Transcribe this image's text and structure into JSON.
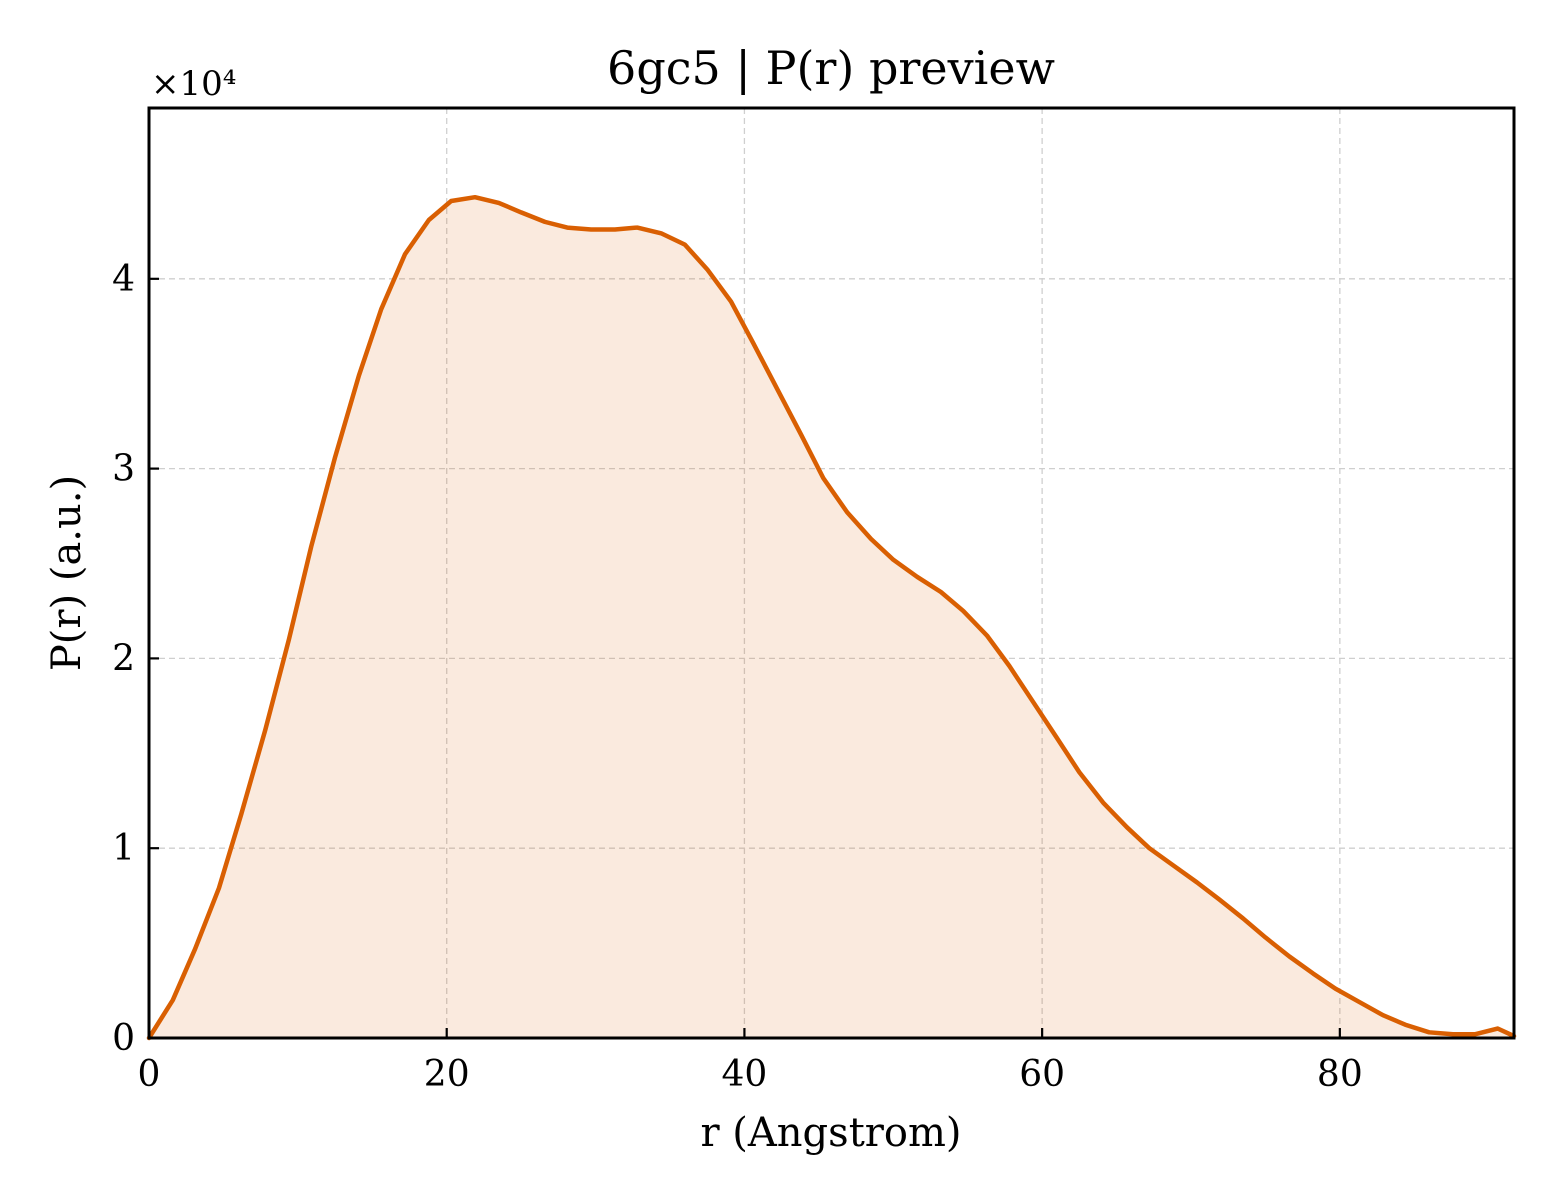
{
  "chart_data": {
    "type": "area",
    "title": "6gc5 | P(r) preview",
    "xlabel": "r (Angstrom)",
    "ylabel": "P(r) (a.u.)",
    "y_multiplier": "×10⁴",
    "xlim": [
      0,
      91.7
    ],
    "ylim": [
      0,
      4.9
    ],
    "xticks": [
      0,
      20,
      40,
      60,
      80
    ],
    "xtick_labels": [
      "0",
      "20",
      "40",
      "60",
      "80"
    ],
    "yticks": [
      0,
      1,
      2,
      3,
      4
    ],
    "ytick_labels": [
      "0",
      "1",
      "2",
      "3",
      "4"
    ],
    "grid": true,
    "legend": "none",
    "series": [
      {
        "color": "#d95f02",
        "fill_color": "#d95f02",
        "fill_opacity": 0.13,
        "x": [
          0,
          1.6,
          3.1,
          4.7,
          6.2,
          7.8,
          9.4,
          10.9,
          12.5,
          14.1,
          15.6,
          17.2,
          18.8,
          20.3,
          21.9,
          23.5,
          25.0,
          26.6,
          28.1,
          29.7,
          31.3,
          32.8,
          34.4,
          36.0,
          37.5,
          39.1,
          40.6,
          42.2,
          43.8,
          45.3,
          46.9,
          48.5,
          50.0,
          51.6,
          53.2,
          54.7,
          56.3,
          57.8,
          59.4,
          61.0,
          62.5,
          64.1,
          65.7,
          67.2,
          68.8,
          70.4,
          71.9,
          73.5,
          75.0,
          76.6,
          78.2,
          79.7,
          81.3,
          82.9,
          84.4,
          86.0,
          87.6,
          89.1,
          90.6,
          91.7
        ],
        "y": [
          0,
          0.2,
          0.47,
          0.79,
          1.18,
          1.62,
          2.1,
          2.59,
          3.06,
          3.49,
          3.84,
          4.13,
          4.31,
          4.41,
          4.43,
          4.4,
          4.35,
          4.3,
          4.27,
          4.26,
          4.26,
          4.27,
          4.24,
          4.18,
          4.05,
          3.88,
          3.66,
          3.42,
          3.18,
          2.95,
          2.77,
          2.63,
          2.52,
          2.43,
          2.35,
          2.25,
          2.12,
          1.96,
          1.77,
          1.58,
          1.4,
          1.24,
          1.11,
          1.0,
          0.91,
          0.82,
          0.73,
          0.63,
          0.53,
          0.43,
          0.34,
          0.26,
          0.19,
          0.12,
          0.07,
          0.03,
          0.02,
          0.02,
          0.05,
          0.01
        ]
      }
    ]
  }
}
